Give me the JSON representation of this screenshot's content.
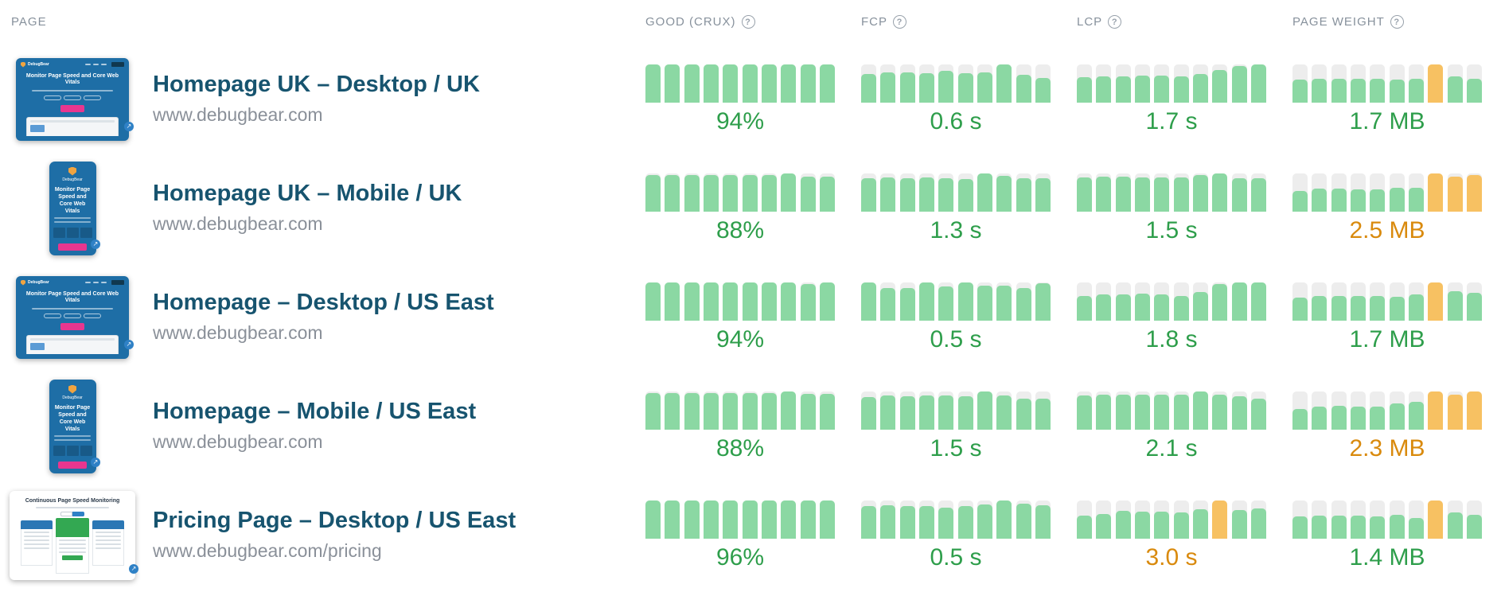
{
  "header": {
    "page_label": "PAGE",
    "metrics": [
      {
        "label": "GOOD (CRUX)",
        "help": "?"
      },
      {
        "label": "FCP",
        "help": "?"
      },
      {
        "label": "LCP",
        "help": "?"
      },
      {
        "label": "PAGE WEIGHT",
        "help": "?"
      }
    ]
  },
  "colors": {
    "bar_green": "#8bd8a3",
    "bar_orange": "#f7c162",
    "bar_track": "#ededed",
    "value_green": "#2e9e4b",
    "value_orange": "#d98a0d",
    "title_blue": "#17546f",
    "muted_gray": "#8a9099"
  },
  "thumbnails": {
    "desktop": {
      "brand": "DebugBear",
      "headline": "Monitor Page Speed and Core Web Vitals",
      "expand_glyph": "↗"
    },
    "mobile": {
      "brand": "DebugBear",
      "headline": "Monitor Page Speed and Core Web Vitals",
      "expand_glyph": "↗"
    },
    "pricing": {
      "headline": "Continuous Page Speed Monitoring",
      "expand_glyph": "↗"
    }
  },
  "rows": [
    {
      "title": "Homepage UK – Desktop / UK",
      "url": "www.debugbear.com",
      "thumbnail": "desktop",
      "metrics": [
        {
          "value": "94%",
          "status": "good",
          "bars": [
            [
              1,
              "g"
            ],
            [
              1,
              "g"
            ],
            [
              1,
              "g"
            ],
            [
              1,
              "g"
            ],
            [
              1,
              "g"
            ],
            [
              1,
              "g"
            ],
            [
              1,
              "g"
            ],
            [
              1,
              "g"
            ],
            [
              1,
              "g"
            ],
            [
              1,
              "g"
            ]
          ]
        },
        {
          "value": "0.6 s",
          "status": "good",
          "bars": [
            [
              0.76,
              "g"
            ],
            [
              0.8,
              "g"
            ],
            [
              0.8,
              "g"
            ],
            [
              0.78,
              "g"
            ],
            [
              0.84,
              "g"
            ],
            [
              0.78,
              "g"
            ],
            [
              0.8,
              "g"
            ],
            [
              1,
              "g"
            ],
            [
              0.72,
              "g"
            ],
            [
              0.64,
              "g"
            ]
          ]
        },
        {
          "value": "1.7 s",
          "status": "good",
          "bars": [
            [
              0.66,
              "g"
            ],
            [
              0.68,
              "g"
            ],
            [
              0.68,
              "g"
            ],
            [
              0.7,
              "g"
            ],
            [
              0.7,
              "g"
            ],
            [
              0.68,
              "g"
            ],
            [
              0.76,
              "g"
            ],
            [
              0.86,
              "g"
            ],
            [
              0.96,
              "g"
            ],
            [
              1,
              "g"
            ]
          ]
        },
        {
          "value": "1.7 MB",
          "status": "good",
          "bars": [
            [
              0.6,
              "g"
            ],
            [
              0.62,
              "g"
            ],
            [
              0.62,
              "g"
            ],
            [
              0.62,
              "g"
            ],
            [
              0.62,
              "g"
            ],
            [
              0.6,
              "g"
            ],
            [
              0.63,
              "g"
            ],
            [
              1,
              "o"
            ],
            [
              0.68,
              "g"
            ],
            [
              0.62,
              "g"
            ]
          ]
        }
      ]
    },
    {
      "title": "Homepage UK – Mobile / UK",
      "url": "www.debugbear.com",
      "thumbnail": "mobile",
      "metrics": [
        {
          "value": "88%",
          "status": "good",
          "bars": [
            [
              0.96,
              "g"
            ],
            [
              0.96,
              "g"
            ],
            [
              0.96,
              "g"
            ],
            [
              0.96,
              "g"
            ],
            [
              0.96,
              "g"
            ],
            [
              0.96,
              "g"
            ],
            [
              0.96,
              "g"
            ],
            [
              1,
              "g"
            ],
            [
              0.92,
              "g"
            ],
            [
              0.92,
              "g"
            ]
          ]
        },
        {
          "value": "1.3 s",
          "status": "good",
          "bars": [
            [
              0.87,
              "g"
            ],
            [
              0.9,
              "g"
            ],
            [
              0.87,
              "g"
            ],
            [
              0.9,
              "g"
            ],
            [
              0.87,
              "g"
            ],
            [
              0.85,
              "g"
            ],
            [
              1,
              "g"
            ],
            [
              0.93,
              "g"
            ],
            [
              0.87,
              "g"
            ],
            [
              0.87,
              "g"
            ]
          ]
        },
        {
          "value": "1.5 s",
          "status": "good",
          "bars": [
            [
              0.9,
              "g"
            ],
            [
              0.92,
              "g"
            ],
            [
              0.92,
              "g"
            ],
            [
              0.9,
              "g"
            ],
            [
              0.9,
              "g"
            ],
            [
              0.9,
              "g"
            ],
            [
              0.96,
              "g"
            ],
            [
              1,
              "g"
            ],
            [
              0.88,
              "g"
            ],
            [
              0.88,
              "g"
            ]
          ]
        },
        {
          "value": "2.5 MB",
          "status": "warn",
          "bars": [
            [
              0.55,
              "g"
            ],
            [
              0.6,
              "g"
            ],
            [
              0.6,
              "g"
            ],
            [
              0.58,
              "g"
            ],
            [
              0.58,
              "g"
            ],
            [
              0.62,
              "g"
            ],
            [
              0.62,
              "g"
            ],
            [
              1,
              "o"
            ],
            [
              0.92,
              "o"
            ],
            [
              0.95,
              "o"
            ]
          ]
        }
      ]
    },
    {
      "title": "Homepage – Desktop / US East",
      "url": "www.debugbear.com",
      "thumbnail": "desktop",
      "metrics": [
        {
          "value": "94%",
          "status": "good",
          "bars": [
            [
              1,
              "g"
            ],
            [
              1,
              "g"
            ],
            [
              1,
              "g"
            ],
            [
              1,
              "g"
            ],
            [
              1,
              "g"
            ],
            [
              1,
              "g"
            ],
            [
              1,
              "g"
            ],
            [
              1,
              "g"
            ],
            [
              0.95,
              "g"
            ],
            [
              1,
              "g"
            ]
          ]
        },
        {
          "value": "0.5 s",
          "status": "good",
          "bars": [
            [
              1,
              "g"
            ],
            [
              0.85,
              "g"
            ],
            [
              0.85,
              "g"
            ],
            [
              1,
              "g"
            ],
            [
              0.9,
              "g"
            ],
            [
              1,
              "g"
            ],
            [
              0.92,
              "g"
            ],
            [
              0.92,
              "g"
            ],
            [
              0.85,
              "g"
            ],
            [
              0.97,
              "g"
            ]
          ]
        },
        {
          "value": "1.8 s",
          "status": "good",
          "bars": [
            [
              0.65,
              "g"
            ],
            [
              0.68,
              "g"
            ],
            [
              0.68,
              "g"
            ],
            [
              0.7,
              "g"
            ],
            [
              0.68,
              "g"
            ],
            [
              0.65,
              "g"
            ],
            [
              0.76,
              "g"
            ],
            [
              0.95,
              "g"
            ],
            [
              1,
              "g"
            ],
            [
              1,
              "g"
            ]
          ]
        },
        {
          "value": "1.7 MB",
          "status": "good",
          "bars": [
            [
              0.6,
              "g"
            ],
            [
              0.65,
              "g"
            ],
            [
              0.65,
              "g"
            ],
            [
              0.65,
              "g"
            ],
            [
              0.65,
              "g"
            ],
            [
              0.62,
              "g"
            ],
            [
              0.68,
              "g"
            ],
            [
              1,
              "o"
            ],
            [
              0.78,
              "g"
            ],
            [
              0.72,
              "g"
            ]
          ]
        }
      ]
    },
    {
      "title": "Homepage – Mobile / US East",
      "url": "www.debugbear.com",
      "thumbnail": "mobile",
      "metrics": [
        {
          "value": "88%",
          "status": "good",
          "bars": [
            [
              0.96,
              "g"
            ],
            [
              0.96,
              "g"
            ],
            [
              0.96,
              "g"
            ],
            [
              0.96,
              "g"
            ],
            [
              0.96,
              "g"
            ],
            [
              0.96,
              "g"
            ],
            [
              0.96,
              "g"
            ],
            [
              1,
              "g"
            ],
            [
              0.93,
              "g"
            ],
            [
              0.93,
              "g"
            ]
          ]
        },
        {
          "value": "1.5 s",
          "status": "good",
          "bars": [
            [
              0.85,
              "g"
            ],
            [
              0.9,
              "g"
            ],
            [
              0.88,
              "g"
            ],
            [
              0.9,
              "g"
            ],
            [
              0.9,
              "g"
            ],
            [
              0.88,
              "g"
            ],
            [
              1,
              "g"
            ],
            [
              0.9,
              "g"
            ],
            [
              0.82,
              "g"
            ],
            [
              0.82,
              "g"
            ]
          ]
        },
        {
          "value": "2.1 s",
          "status": "good",
          "bars": [
            [
              0.9,
              "g"
            ],
            [
              0.92,
              "g"
            ],
            [
              0.92,
              "g"
            ],
            [
              0.92,
              "g"
            ],
            [
              0.92,
              "g"
            ],
            [
              0.92,
              "g"
            ],
            [
              1,
              "g"
            ],
            [
              0.92,
              "g"
            ],
            [
              0.88,
              "g"
            ],
            [
              0.82,
              "g"
            ]
          ]
        },
        {
          "value": "2.3 MB",
          "status": "warn",
          "bars": [
            [
              0.55,
              "g"
            ],
            [
              0.6,
              "g"
            ],
            [
              0.62,
              "g"
            ],
            [
              0.6,
              "g"
            ],
            [
              0.6,
              "g"
            ],
            [
              0.68,
              "g"
            ],
            [
              0.72,
              "g"
            ],
            [
              1,
              "o"
            ],
            [
              0.92,
              "o"
            ],
            [
              1,
              "o"
            ]
          ]
        }
      ]
    },
    {
      "title": "Pricing Page – Desktop / US East",
      "url": "www.debugbear.com/pricing",
      "thumbnail": "pricing",
      "metrics": [
        {
          "value": "96%",
          "status": "good",
          "bars": [
            [
              1,
              "g"
            ],
            [
              1,
              "g"
            ],
            [
              1,
              "g"
            ],
            [
              1,
              "g"
            ],
            [
              1,
              "g"
            ],
            [
              1,
              "g"
            ],
            [
              1,
              "g"
            ],
            [
              1,
              "g"
            ],
            [
              1,
              "g"
            ],
            [
              1,
              "g"
            ]
          ]
        },
        {
          "value": "0.5 s",
          "status": "good",
          "bars": [
            [
              0.85,
              "g"
            ],
            [
              0.88,
              "g"
            ],
            [
              0.85,
              "g"
            ],
            [
              0.85,
              "g"
            ],
            [
              0.82,
              "g"
            ],
            [
              0.85,
              "g"
            ],
            [
              0.9,
              "g"
            ],
            [
              1,
              "g"
            ],
            [
              0.92,
              "g"
            ],
            [
              0.88,
              "g"
            ]
          ]
        },
        {
          "value": "3.0 s",
          "status": "warn",
          "bars": [
            [
              0.6,
              "g"
            ],
            [
              0.65,
              "g"
            ],
            [
              0.72,
              "g"
            ],
            [
              0.7,
              "g"
            ],
            [
              0.7,
              "g"
            ],
            [
              0.68,
              "g"
            ],
            [
              0.78,
              "g"
            ],
            [
              1,
              "o"
            ],
            [
              0.75,
              "g"
            ],
            [
              0.8,
              "g"
            ]
          ]
        },
        {
          "value": "1.4 MB",
          "status": "good",
          "bars": [
            [
              0.58,
              "g"
            ],
            [
              0.6,
              "g"
            ],
            [
              0.6,
              "g"
            ],
            [
              0.6,
              "g"
            ],
            [
              0.58,
              "g"
            ],
            [
              0.62,
              "g"
            ],
            [
              0.55,
              "g"
            ],
            [
              1,
              "o"
            ],
            [
              0.68,
              "g"
            ],
            [
              0.62,
              "g"
            ]
          ]
        }
      ]
    }
  ]
}
